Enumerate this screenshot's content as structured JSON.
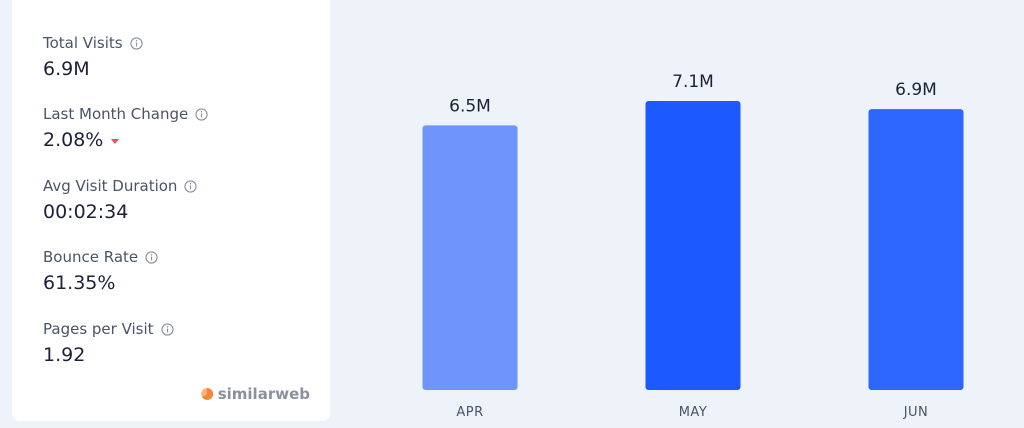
{
  "metrics": [
    {
      "label": "Total Visits",
      "value": "6.9M"
    },
    {
      "label": "Last Month Change",
      "value": "2.08%",
      "trend": "down",
      "trend_color": "#e8505b"
    },
    {
      "label": "Avg Visit Duration",
      "value": "00:02:34"
    },
    {
      "label": "Bounce Rate",
      "value": "61.35%"
    },
    {
      "label": "Pages per Visit",
      "value": "1.92"
    }
  ],
  "brand": {
    "name": "similarweb",
    "icon": "similarweb-logo-icon"
  },
  "info_icon": "info-icon",
  "colors": {
    "background": "#eef2f9",
    "panel": "#ffffff",
    "bar_light": "#6f95fc",
    "bar_dark": "#1c5aff",
    "bar_mid": "#2e67ff"
  },
  "chart_data": {
    "type": "bar",
    "categories": [
      "APR",
      "MAY",
      "JUN"
    ],
    "values": [
      6.5,
      7.1,
      6.9
    ],
    "unit": "M",
    "data_labels": [
      "6.5M",
      "7.1M",
      "6.9M"
    ],
    "bar_colors": [
      "#6f95fc",
      "#1c5aff",
      "#2e67ff"
    ],
    "title": "",
    "xlabel": "",
    "ylabel": "",
    "ylim": [
      0,
      7.1
    ],
    "grid": false,
    "legend": "none"
  }
}
